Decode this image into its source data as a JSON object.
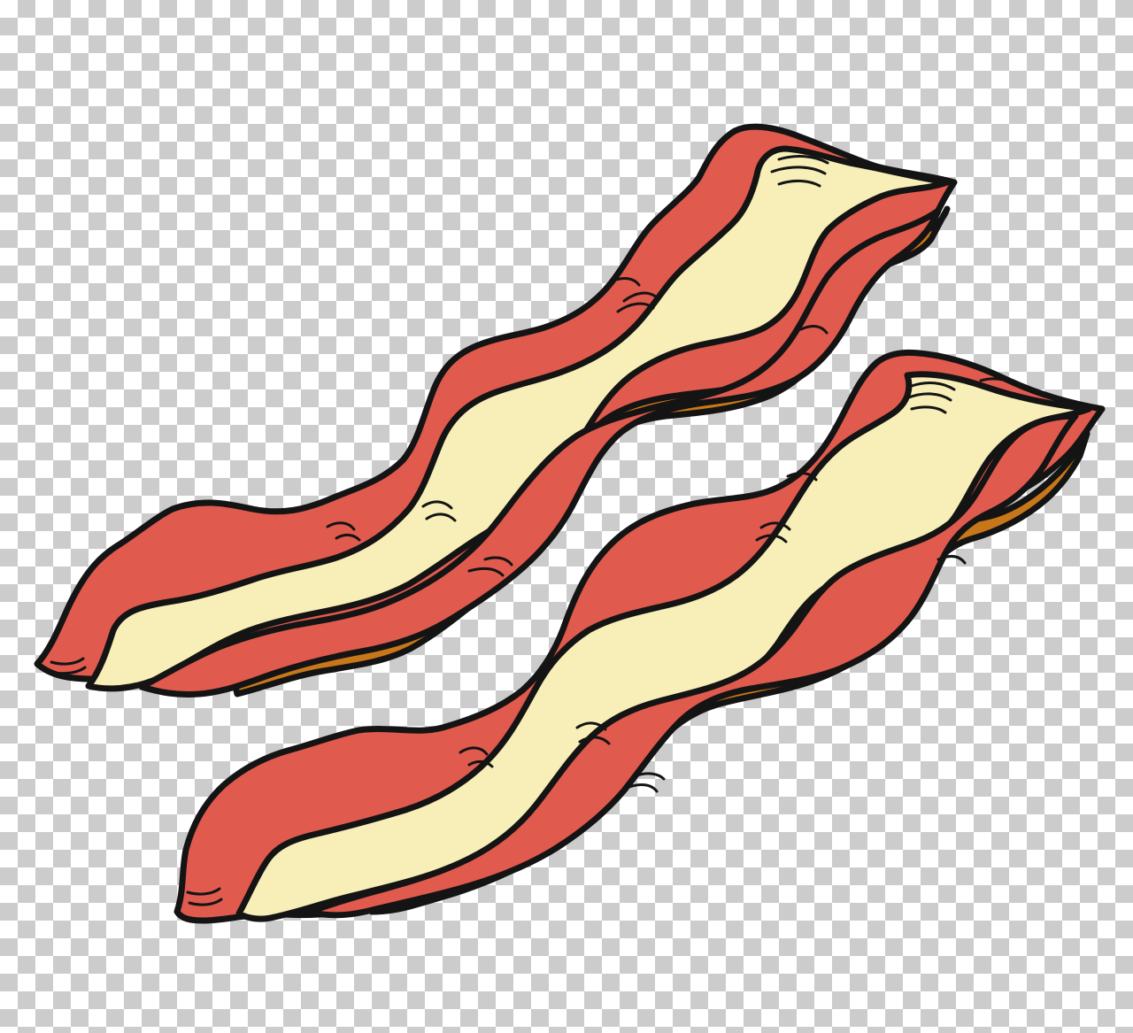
{
  "illustration": {
    "subject": "bacon-strips",
    "strip_count": 2,
    "colors": {
      "outline": "#141414",
      "meat": "#e05a4e",
      "fat": "#f7efb7",
      "crisp_edge": "#c7771a"
    }
  }
}
